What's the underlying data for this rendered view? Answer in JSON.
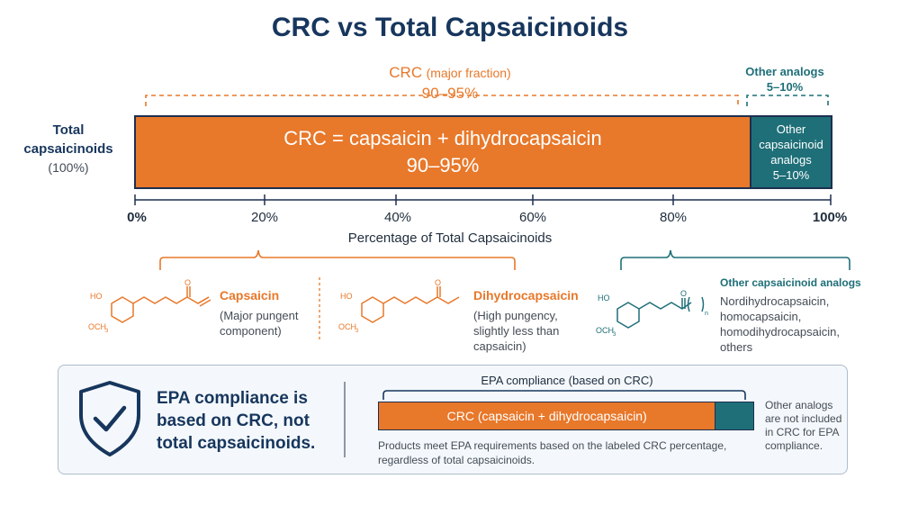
{
  "title": "CRC vs Total Capsaicinoids",
  "top_brackets": {
    "crc_label": "CRC",
    "crc_qualifier": "(major fraction)",
    "crc_range": "90–95%",
    "other_label": "Other analogs",
    "other_range": "5–10%"
  },
  "y_label": {
    "line1": "Total",
    "line2": "capsaicinoids",
    "line3": "(100%)"
  },
  "bar": {
    "crc_line1": "CRC = capsaicin + dihydrocapsaicin",
    "crc_line2": "90–95%",
    "other_line1": "Other",
    "other_line2": "capsaicinoid",
    "other_line3": "analogs",
    "other_line4": "5–10%"
  },
  "axis": {
    "ticks": [
      "0%",
      "20%",
      "40%",
      "60%",
      "80%",
      "100%"
    ],
    "label": "Percentage of Total Capsaicinoids"
  },
  "compounds": {
    "capsaicin": {
      "name": "Capsaicin",
      "desc1": "(Major pungent",
      "desc2": "component)"
    },
    "dihydrocapsaicin": {
      "name": "Dihydrocapsaicin",
      "desc1": "(High pungency,",
      "desc2": "slightly less than",
      "desc3": "capsaicin)"
    },
    "other": {
      "name": "Other capsaicinoid analogs",
      "desc1": "Nordihydrocapsaicin,",
      "desc2": "homocapsaicin,",
      "desc3": "homodihydrocapsaicin,",
      "desc4": "others"
    },
    "atom_ho": "HO",
    "atom_och3": "OCH",
    "atom_och3_sub": "3",
    "atom_o": "O",
    "atom_n": "n"
  },
  "compliance": {
    "headline1": "EPA compliance is",
    "headline2": "based on CRC, not",
    "headline3": "total capsaicinoids.",
    "bracket_label": "EPA compliance (based on CRC)",
    "bar_label": "CRC (capsaicin + dihydrocapsaicin)",
    "note1": "Products meet EPA requirements based on the labeled CRC percentage,",
    "note2": "regardless of total capsaicinoids.",
    "side1": "Other analogs",
    "side2": "are not included",
    "side3": "in CRC for EPA",
    "side4": "compliance."
  },
  "colors": {
    "orange": "#e8782a",
    "teal": "#1f6f78",
    "navy": "#17365d"
  }
}
